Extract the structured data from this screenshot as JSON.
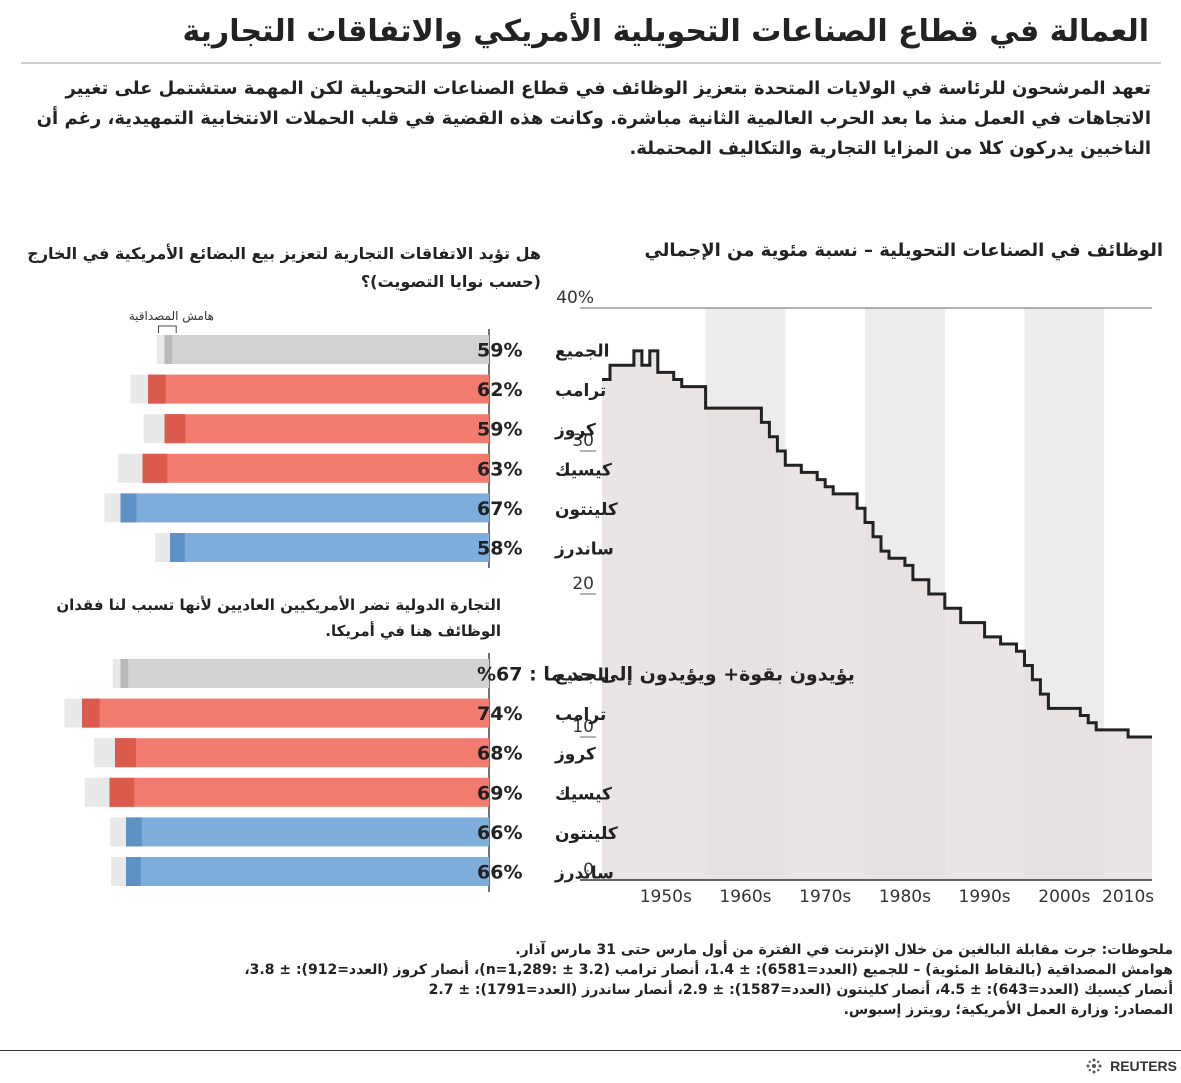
{
  "title": "العمالة في قطاع الصناعات التحويلية الأمريكي والاتفاقات التجارية",
  "intro": "تعهد المرشحون للرئاسة في الولايات المتحدة بتعزيز الوظائف في قطاع الصناعات التحويلية لكن المهمة ستشتمل على تغيير الاتجاهات في العمل منذ ما بعد الحرب العالمية الثانية مباشرة. وكانت هذه القضية في قلب الحملات الانتخابية التمهيدية، رغم أن الناخبين يدركون كلا من المزايا التجارية والتكاليف المحتملة.",
  "chart_data": [
    {
      "type": "line",
      "title": "الوظائف في الصناعات التحويلية – نسبة مئوية من الإجمالي",
      "x_labels": [
        "1950s",
        "1960s",
        "1970s",
        "1980s",
        "1990s",
        "2000s",
        "2010s"
      ],
      "y_ticks": [
        "40%",
        "30",
        "20",
        "10",
        "0"
      ],
      "ylim": [
        0,
        40
      ],
      "xlim": [
        1947,
        2016
      ],
      "x": [
        1947,
        1948,
        1950,
        1951,
        1952,
        1953,
        1954,
        1956,
        1957,
        1960,
        1966,
        1967,
        1968,
        1969,
        1970,
        1971,
        1972,
        1973,
        1974,
        1975,
        1976,
        1979,
        1980,
        1981,
        1982,
        1983,
        1985,
        1986,
        1988,
        1990,
        1992,
        1995,
        1997,
        1999,
        2000,
        2001,
        2002,
        2003,
        2005,
        2007,
        2008,
        2009,
        2011,
        2013,
        2016
      ],
      "y": [
        35,
        36,
        36,
        37,
        36,
        37,
        35.5,
        35,
        34.5,
        33,
        33,
        32,
        31,
        30,
        29,
        29,
        28.5,
        28.5,
        28,
        27.5,
        27,
        26,
        25,
        24,
        23,
        22.5,
        22,
        21,
        20,
        19,
        18,
        17,
        16.5,
        16,
        15,
        14,
        13,
        12,
        12,
        11.5,
        11,
        10.5,
        10.5,
        10,
        10
      ],
      "series_color": "#222222",
      "area_color": "#e6dfdf",
      "band_color": "#ececec",
      "bands": [
        [
          1960,
          1970
        ],
        [
          1980,
          1990
        ],
        [
          2000,
          2010
        ]
      ]
    },
    {
      "type": "bar",
      "title": "هل تؤيد الاتفاقات التجارية لتعزيز بيع البضائع الأمريكية في الخارج (حسب نوايا التصويت)؟",
      "margin_label": "هامش المصداقية",
      "categories": [
        "الجميع",
        "ترامب",
        "كروز",
        "كيسيك",
        "كلينتون",
        "ساندرز"
      ],
      "values": [
        59,
        62,
        59,
        63,
        67,
        58
      ],
      "value_labels": [
        "59%",
        "62%",
        "59%",
        "63%",
        "67%",
        "58%"
      ],
      "errors": [
        1.4,
        3.2,
        3.8,
        4.5,
        2.9,
        2.7
      ],
      "colors": [
        "#d2d2d2",
        "#f07b6e",
        "#f07b6e",
        "#f07b6e",
        "#7eaddc",
        "#7eaddc"
      ],
      "xlim": [
        0,
        100
      ]
    },
    {
      "type": "bar",
      "title": "التجارة الدولية تضر الأمريكيين العاديين لأنها تسبب لنا فقدان الوظائف هنا في أمريكا.",
      "categories": [
        "الجميع",
        "ترامب",
        "كروز",
        "كيسيك",
        "كلينتون",
        "ساندرز"
      ],
      "values": [
        67,
        74,
        68,
        69,
        66,
        66
      ],
      "value_labels": [
        "يؤيدون بقوة+ ويؤيدون إلى حد ما : 67%",
        "74%",
        "68%",
        "69%",
        "66%",
        "66%"
      ],
      "errors": [
        1.4,
        3.2,
        3.8,
        4.5,
        2.9,
        2.7
      ],
      "colors": [
        "#d2d2d2",
        "#f07b6e",
        "#f07b6e",
        "#f07b6e",
        "#7eaddc",
        "#7eaddc"
      ],
      "xlim": [
        0,
        100
      ]
    }
  ],
  "notes": [
    "ملحوظات: جرت مقابلة البالغين من خلال الإنترنت في الفترة من أول مارس حتى 31 مارس آذار.",
    "هوامش المصداقية (بالنقاط المئوية) – للجميع (العدد=6581): ± 1.4، أنصار ترامب (3.2 ± :n=1,289)، أنصار كروز (العدد=912): ± 3.8،",
    "أنصار كيسيك (العدد=643): ± 4.5، أنصار كلينتون (العدد=1587): ± 2.9، أنصار ساندرز (العدد=1791): ± 2.7",
    "المصادر: وزارة العمل الأمريكية؛ رويترز إسبوس."
  ],
  "brand": "REUTERS"
}
